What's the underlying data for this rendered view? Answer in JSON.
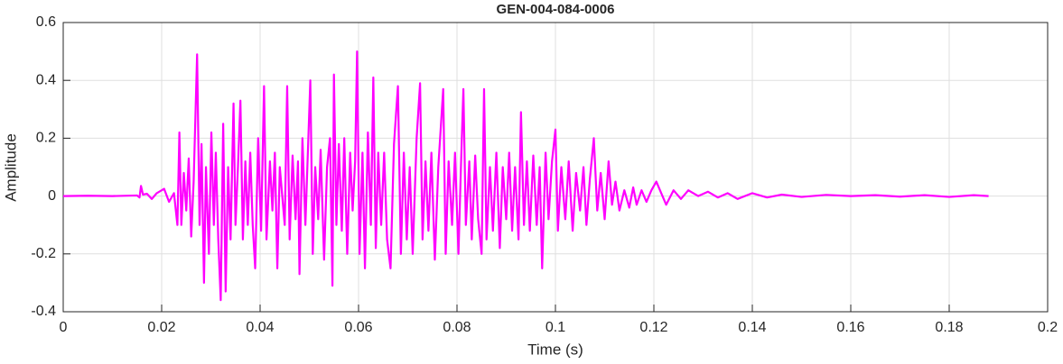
{
  "chart_data": {
    "type": "line",
    "title": "GEN-004-084-0006",
    "x_label": "Time (s)",
    "y_label": "Amplitude",
    "x": [
      0,
      0.005,
      0.01,
      0.015,
      0.0155,
      0.0158,
      0.0162,
      0.017,
      0.018,
      0.019,
      0.0205,
      0.0215,
      0.0225,
      0.0232,
      0.0236,
      0.024,
      0.0245,
      0.025,
      0.0255,
      0.026,
      0.0265,
      0.0272,
      0.0277,
      0.0281,
      0.0286,
      0.029,
      0.0296,
      0.0301,
      0.0306,
      0.031,
      0.0315,
      0.032,
      0.0325,
      0.033,
      0.0335,
      0.034,
      0.0346,
      0.035,
      0.0355,
      0.036,
      0.0365,
      0.037,
      0.0375,
      0.038,
      0.0385,
      0.039,
      0.0396,
      0.0402,
      0.0408,
      0.0413,
      0.042,
      0.0425,
      0.043,
      0.0435,
      0.044,
      0.045,
      0.0455,
      0.046,
      0.0466,
      0.0472,
      0.0477,
      0.048,
      0.0486,
      0.0492,
      0.0497,
      0.0502,
      0.0507,
      0.0512,
      0.0518,
      0.0523,
      0.053,
      0.0536,
      0.0542,
      0.0547,
      0.055,
      0.0555,
      0.056,
      0.0566,
      0.0571,
      0.0577,
      0.0583,
      0.0588,
      0.0593,
      0.0597,
      0.0602,
      0.0608,
      0.0613,
      0.0619,
      0.0625,
      0.063,
      0.0635,
      0.064,
      0.0646,
      0.0652,
      0.0658,
      0.0665,
      0.0672,
      0.068,
      0.0686,
      0.0692,
      0.0698,
      0.0704,
      0.071,
      0.0718,
      0.0725,
      0.073,
      0.0736,
      0.0742,
      0.0748,
      0.0755,
      0.0762,
      0.0772,
      0.0777,
      0.0783,
      0.079,
      0.0796,
      0.0803,
      0.0808,
      0.0813,
      0.0818,
      0.0825,
      0.083,
      0.0837,
      0.0843,
      0.085,
      0.0855,
      0.086,
      0.0867,
      0.0873,
      0.088,
      0.0887,
      0.0893,
      0.09,
      0.0906,
      0.0912,
      0.0918,
      0.0925,
      0.093,
      0.0936,
      0.0942,
      0.0948,
      0.0955,
      0.0962,
      0.0968,
      0.0973,
      0.098,
      0.0986,
      0.0993,
      0.1,
      0.1005,
      0.1012,
      0.102,
      0.1027,
      0.1035,
      0.1042,
      0.105,
      0.1057,
      0.1063,
      0.107,
      0.1078,
      0.1085,
      0.1092,
      0.11,
      0.1108,
      0.1115,
      0.1122,
      0.113,
      0.114,
      0.115,
      0.1158,
      0.1165,
      0.1175,
      0.1185,
      0.1195,
      0.1205,
      0.1215,
      0.1225,
      0.124,
      0.1255,
      0.127,
      0.129,
      0.131,
      0.133,
      0.135,
      0.137,
      0.14,
      0.143,
      0.146,
      0.15,
      0.155,
      0.16,
      0.165,
      0.17,
      0.175,
      0.18,
      0.185,
      0.188
    ],
    "series": [
      {
        "color": "#ff00ff",
        "values": [
          0,
          0.001,
          0,
          0.002,
          -0.005,
          0.035,
          0.005,
          0.008,
          -0.01,
          0.01,
          0.025,
          -0.02,
          0.01,
          -0.1,
          0.22,
          -0.1,
          0.08,
          -0.05,
          0.13,
          -0.14,
          0.05,
          0.49,
          -0.1,
          0.18,
          -0.3,
          0.1,
          -0.2,
          0.22,
          -0.1,
          0.15,
          -0.15,
          -0.36,
          0.25,
          -0.33,
          0.1,
          -0.15,
          0.32,
          -0.1,
          0.1,
          0.33,
          -0.15,
          0.12,
          -0.1,
          0.15,
          -0.1,
          -0.25,
          0.2,
          -0.12,
          0.38,
          -0.15,
          0.12,
          -0.05,
          0.15,
          -0.25,
          0.1,
          -0.1,
          0.38,
          -0.15,
          0.14,
          -0.08,
          0.12,
          -0.27,
          0.2,
          -0.1,
          0.15,
          0.4,
          -0.2,
          0.1,
          -0.08,
          0.16,
          -0.22,
          0.1,
          0.2,
          -0.31,
          0.42,
          -0.1,
          0.18,
          -0.12,
          0.2,
          -0.2,
          0.15,
          -0.05,
          0.12,
          0.5,
          -0.2,
          0.15,
          -0.25,
          0.22,
          -0.1,
          0.41,
          -0.18,
          0.15,
          -0.1,
          0.15,
          -0.15,
          -0.25,
          0.18,
          0.38,
          -0.2,
          0.15,
          -0.15,
          0.1,
          -0.2,
          0.2,
          0.39,
          -0.15,
          0.12,
          -0.12,
          0.15,
          -0.22,
          0.1,
          0.37,
          -0.2,
          0.12,
          -0.1,
          0.15,
          -0.2,
          0.1,
          0.37,
          -0.1,
          0.12,
          -0.15,
          0.14,
          -0.08,
          -0.2,
          0.37,
          -0.15,
          0.1,
          -0.12,
          0.15,
          -0.18,
          0.1,
          -0.08,
          0.15,
          -0.12,
          0.1,
          -0.15,
          0.29,
          -0.1,
          0.12,
          -0.12,
          0.14,
          -0.1,
          0.1,
          -0.25,
          0.15,
          -0.08,
          0.12,
          0.23,
          -0.12,
          0.1,
          -0.08,
          0.12,
          -0.12,
          0.08,
          -0.05,
          0.1,
          -0.1,
          0.06,
          0.2,
          -0.05,
          0.08,
          -0.08,
          0.12,
          -0.03,
          0.05,
          -0.05,
          0.02,
          -0.04,
          0.03,
          -0.03,
          0.02,
          -0.02,
          0.02,
          0.05,
          0.01,
          -0.03,
          0.02,
          -0.01,
          0.02,
          0,
          0.015,
          -0.005,
          0.01,
          -0.01,
          0.01,
          -0.005,
          0.005,
          -0.003,
          0.004,
          0,
          0.003,
          -0.002,
          0.003,
          -0.003,
          0.003,
          0
        ]
      }
    ],
    "xlim": [
      0,
      0.2
    ],
    "xticks": [
      0,
      0.02,
      0.04,
      0.06,
      0.08,
      0.1,
      0.12,
      0.14,
      0.16,
      0.18,
      0.2
    ],
    "ylim": [
      -0.4,
      0.6
    ],
    "yticks": [
      -0.4,
      -0.2,
      0,
      0.2,
      0.4,
      0.6
    ],
    "grid": true
  }
}
